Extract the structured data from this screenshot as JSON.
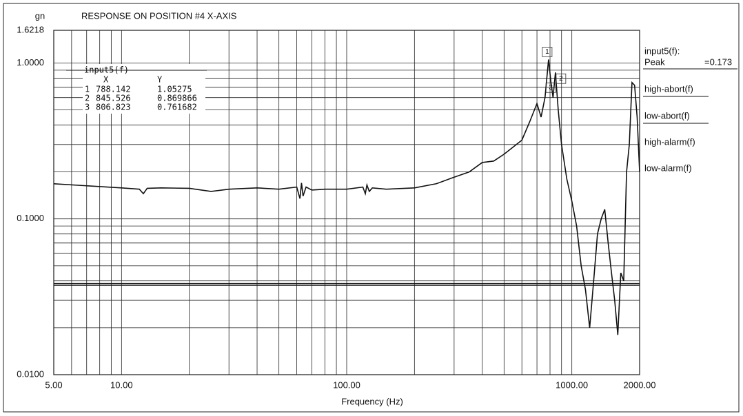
{
  "chart_data": {
    "type": "line",
    "title": "RESPONSE ON POSITION #4  X-AXIS",
    "y_label": "gn",
    "x_label": "Frequency (Hz)",
    "x_scale": "log",
    "y_scale": "log",
    "grid": true,
    "xlim": [
      5,
      2000
    ],
    "ylim": [
      0.01,
      1.6218
    ],
    "xticks": [
      {
        "value": 5,
        "label": "5.00"
      },
      {
        "value": 10,
        "label": "10.00"
      },
      {
        "value": 100,
        "label": "100.00"
      },
      {
        "value": 1000,
        "label": "1000.00"
      },
      {
        "value": 2000,
        "label": "2000.00"
      }
    ],
    "yticks": [
      {
        "value": 0.01,
        "label": "0.0100"
      },
      {
        "value": 0.1,
        "label": "0.1000"
      },
      {
        "value": 1,
        "label": "1.0000"
      },
      1.6218
    ],
    "x_grid": [
      6,
      7,
      8,
      9,
      20,
      30,
      40,
      50,
      60,
      70,
      80,
      90,
      200,
      300,
      400,
      500,
      600,
      700,
      800,
      900
    ],
    "y_grid": [
      0.02,
      0.03,
      0.04,
      0.05,
      0.06,
      0.07,
      0.08,
      0.09,
      0.2,
      0.3,
      0.4,
      0.5,
      0.6,
      0.7,
      0.8,
      0.9
    ],
    "limit_lines": [
      0.0375,
      0.0385
    ],
    "x": [
      5,
      7,
      10,
      12,
      12.5,
      13,
      15,
      20,
      25,
      30,
      40,
      50,
      60,
      62,
      63,
      64,
      66,
      70,
      80,
      100,
      118,
      121,
      123,
      126,
      130,
      150,
      200,
      250,
      300,
      350,
      400,
      450,
      500,
      600,
      650,
      700,
      730,
      760,
      788.142,
      806.823,
      825,
      845.526,
      870,
      900,
      950,
      1000,
      1050,
      1100,
      1150,
      1200,
      1250,
      1300,
      1350,
      1400,
      1450,
      1500,
      1550,
      1600,
      1650,
      1700,
      1750,
      1800,
      1850,
      1900,
      1950,
      2000
    ],
    "series": [
      {
        "name": "input5(f)",
        "color": "#111111",
        "values": [
          0.168,
          0.163,
          0.158,
          0.155,
          0.145,
          0.157,
          0.158,
          0.157,
          0.15,
          0.155,
          0.158,
          0.155,
          0.16,
          0.135,
          0.17,
          0.14,
          0.16,
          0.153,
          0.155,
          0.155,
          0.16,
          0.145,
          0.165,
          0.15,
          0.158,
          0.155,
          0.158,
          0.168,
          0.185,
          0.2,
          0.23,
          0.235,
          0.26,
          0.32,
          0.42,
          0.55,
          0.45,
          0.6,
          1.05275,
          0.761682,
          0.6,
          0.869866,
          0.5,
          0.3,
          0.18,
          0.13,
          0.09,
          0.05,
          0.035,
          0.02,
          0.04,
          0.08,
          0.1,
          0.115,
          0.07,
          0.045,
          0.03,
          0.018,
          0.045,
          0.04,
          0.2,
          0.3,
          0.75,
          0.72,
          0.45,
          0.2
        ]
      }
    ],
    "markers": [
      {
        "label": "1",
        "x": 788.142,
        "y": 1.05275
      },
      {
        "label": "2",
        "x": 845.526,
        "y": 0.869866
      },
      {
        "label": "3",
        "x": 806.823,
        "y": 0.761682
      }
    ],
    "marker_table": {
      "title": "input5(f)",
      "columns": [
        "X",
        "Y"
      ]
    },
    "side_panel": {
      "header": "input5(f):",
      "peak_label": "Peak",
      "peak_value": "=0.173",
      "items": [
        "high-abort(f)",
        "low-abort(f)",
        "high-alarm(f)",
        "low-alarm(f)"
      ]
    }
  }
}
